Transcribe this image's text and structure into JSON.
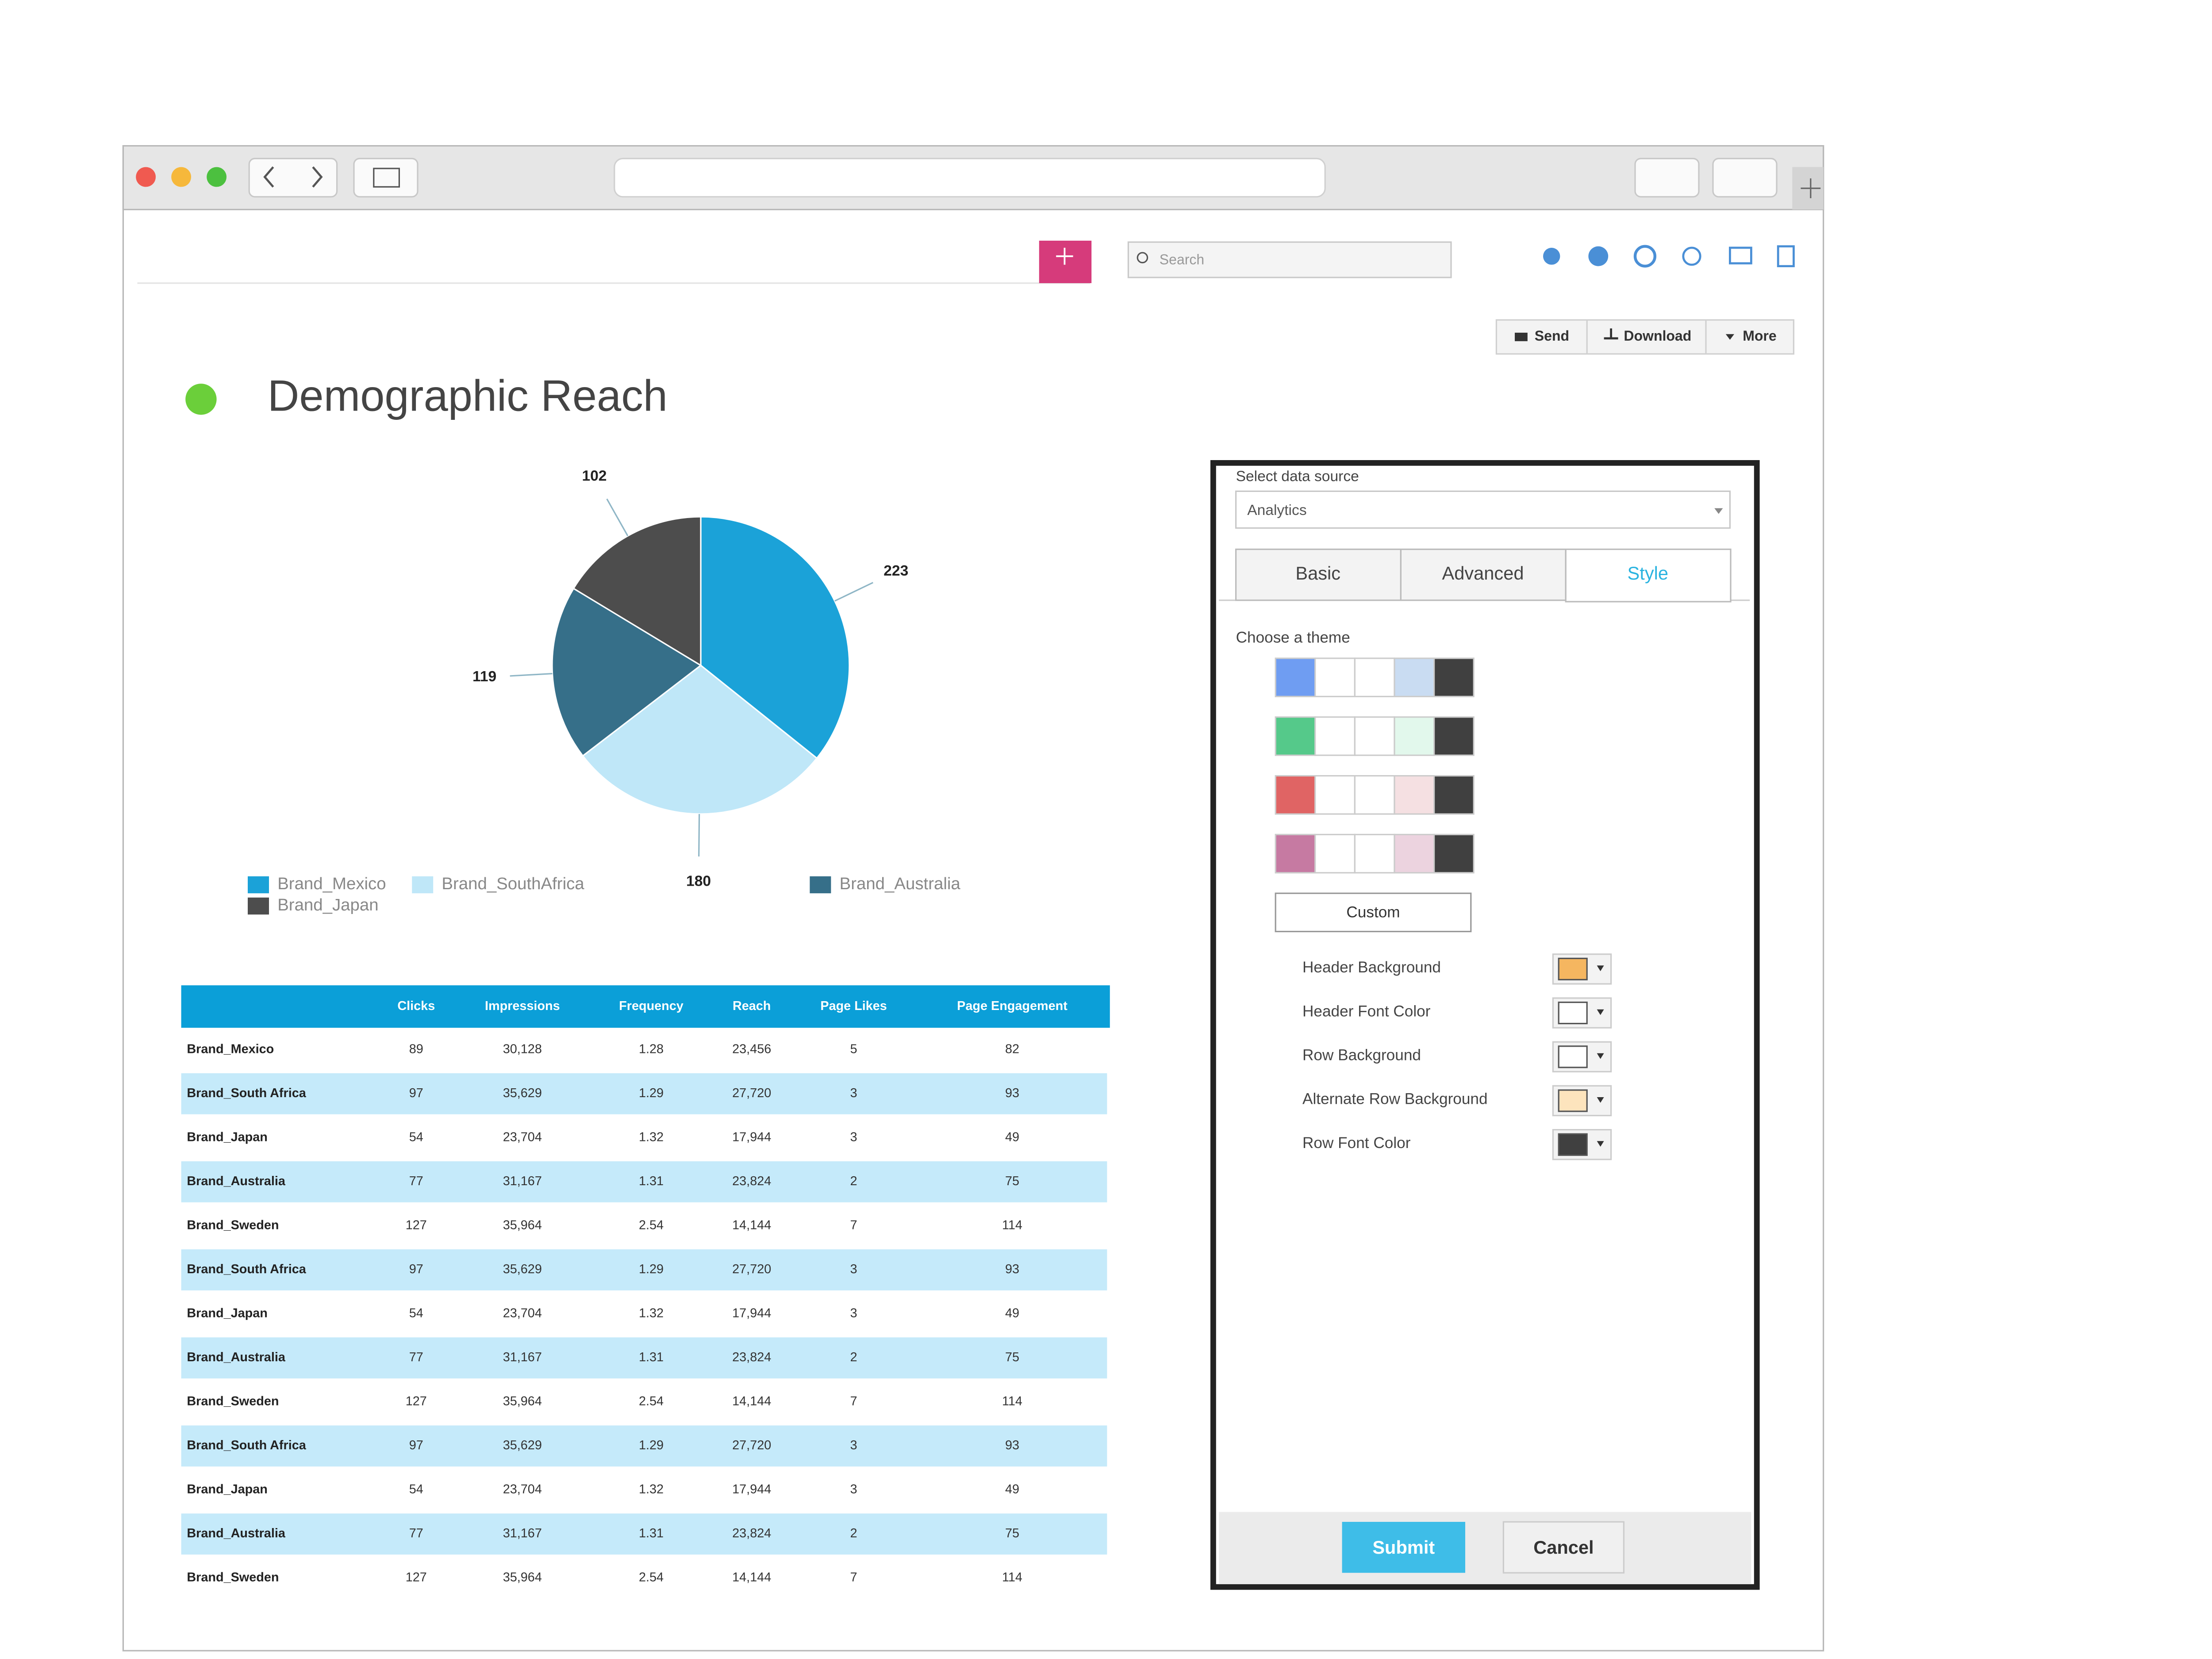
{
  "toolbar": {
    "search_placeholder": "Search",
    "buttons": [
      "Send",
      "Download",
      "More"
    ]
  },
  "page_title": "Demographic Reach",
  "chart_data": {
    "type": "pie",
    "categories": [
      "Brand_Mexico",
      "Brand_SouthAfrica",
      "Brand_Australia",
      "Brand_Japan"
    ],
    "values": [
      223,
      180,
      119,
      102
    ],
    "colors": [
      "#1ba2d8",
      "#bfe7f8",
      "#366f89",
      "#4d4d4d"
    ]
  },
  "table": {
    "columns": [
      "Clicks",
      "Impressions",
      "Frequency",
      "Reach",
      "Page Likes",
      "Page Engagement"
    ],
    "rows": [
      {
        "name": "Brand_Mexico",
        "cells": [
          "89",
          "30,128",
          "1.28",
          "23,456",
          "5",
          "82"
        ]
      },
      {
        "name": "Brand_South Africa",
        "cells": [
          "97",
          "35,629",
          "1.29",
          "27,720",
          "3",
          "93"
        ]
      },
      {
        "name": "Brand_Japan",
        "cells": [
          "54",
          "23,704",
          "1.32",
          "17,944",
          "3",
          "49"
        ]
      },
      {
        "name": "Brand_Australia",
        "cells": [
          "77",
          "31,167",
          "1.31",
          "23,824",
          "2",
          "75"
        ]
      },
      {
        "name": "Brand_Sweden",
        "cells": [
          "127",
          "35,964",
          "2.54",
          "14,144",
          "7",
          "114"
        ]
      },
      {
        "name": "Brand_South Africa",
        "cells": [
          "97",
          "35,629",
          "1.29",
          "27,720",
          "3",
          "93"
        ]
      },
      {
        "name": "Brand_Japan",
        "cells": [
          "54",
          "23,704",
          "1.32",
          "17,944",
          "3",
          "49"
        ]
      },
      {
        "name": "Brand_Australia",
        "cells": [
          "77",
          "31,167",
          "1.31",
          "23,824",
          "2",
          "75"
        ]
      },
      {
        "name": "Brand_Sweden",
        "cells": [
          "127",
          "35,964",
          "2.54",
          "14,144",
          "7",
          "114"
        ]
      },
      {
        "name": "Brand_South Africa",
        "cells": [
          "97",
          "35,629",
          "1.29",
          "27,720",
          "3",
          "93"
        ]
      },
      {
        "name": "Brand_Japan",
        "cells": [
          "54",
          "23,704",
          "1.32",
          "17,944",
          "3",
          "49"
        ]
      },
      {
        "name": "Brand_Australia",
        "cells": [
          "77",
          "31,167",
          "1.31",
          "23,824",
          "2",
          "75"
        ]
      },
      {
        "name": "Brand_Sweden",
        "cells": [
          "127",
          "35,964",
          "2.54",
          "14,144",
          "7",
          "114"
        ]
      }
    ]
  },
  "panel": {
    "source_label": "Select data source",
    "source_value": "Analytics",
    "tabs": [
      "Basic",
      "Advanced",
      "Style"
    ],
    "theme_label": "Choose a theme",
    "themes": [
      [
        "#6f9df2",
        "#ffffff",
        "#ffffff",
        "#c9dcf2",
        "#404040"
      ],
      [
        "#55c98a",
        "#ffffff",
        "#ffffff",
        "#e2f8ec",
        "#404040"
      ],
      [
        "#e06464",
        "#ffffff",
        "#ffffff",
        "#f5e0e2",
        "#404040"
      ],
      [
        "#c67aa2",
        "#ffffff",
        "#ffffff",
        "#ecd3df",
        "#404040"
      ]
    ],
    "custom": "Custom",
    "settings": [
      {
        "label": "Header Background",
        "color": "#f5b660"
      },
      {
        "label": "Header Font Color",
        "color": "#ffffff"
      },
      {
        "label": "Row Background",
        "color": "#ffffff"
      },
      {
        "label": "Alternate Row Background",
        "color": "#fde4bd"
      },
      {
        "label": "Row Font Color",
        "color": "#404040"
      }
    ],
    "submit": "Submit",
    "cancel": "Cancel"
  }
}
